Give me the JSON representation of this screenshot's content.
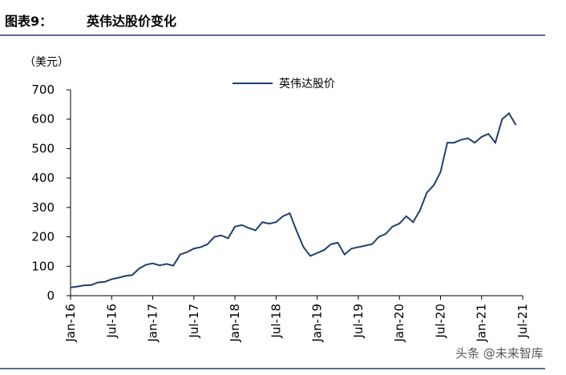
{
  "header": {
    "label": "图表9：",
    "title": "英伟达股价变化"
  },
  "watermark": "头条 @未来智库",
  "chart_data": {
    "type": "line",
    "y_unit": "（美元）",
    "categories": [
      "Jan-16",
      null,
      null,
      null,
      null,
      null,
      "Jul-16",
      null,
      null,
      null,
      null,
      null,
      "Jan-17",
      null,
      null,
      null,
      null,
      null,
      "Jul-17",
      null,
      null,
      null,
      null,
      null,
      "Jan-18",
      null,
      null,
      null,
      null,
      null,
      "Jul-18",
      null,
      null,
      null,
      null,
      null,
      "Jan-19",
      null,
      null,
      null,
      null,
      null,
      "Jul-19",
      null,
      null,
      null,
      null,
      null,
      "Jan-20",
      null,
      null,
      null,
      null,
      null,
      "Jul-20",
      null,
      null,
      null,
      null,
      null,
      "Jan-21",
      null,
      null,
      null,
      null,
      null,
      "Jul-21"
    ],
    "series": [
      {
        "name": "英伟达股价",
        "color": "#1f3f6e",
        "values": [
          28,
          31,
          35,
          36,
          45,
          47,
          56,
          61,
          67,
          70,
          92,
          105,
          110,
          103,
          108,
          102,
          140,
          148,
          160,
          165,
          175,
          200,
          205,
          195,
          235,
          240,
          230,
          222,
          250,
          245,
          250,
          270,
          280,
          220,
          165,
          135,
          145,
          155,
          175,
          180,
          140,
          160,
          165,
          170,
          175,
          200,
          210,
          235,
          245,
          270,
          250,
          290,
          350,
          375,
          420,
          520,
          520,
          530,
          535,
          520,
          540,
          550,
          520,
          600,
          620,
          580,
          null
        ]
      }
    ],
    "ylim": [
      0,
      700
    ],
    "yticks": [
      0,
      100,
      200,
      300,
      400,
      500,
      600,
      700
    ],
    "legend": "top"
  }
}
